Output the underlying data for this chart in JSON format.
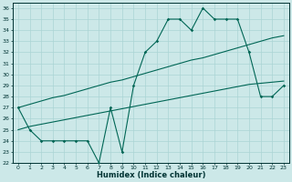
{
  "xlabel": "Humidex (Indice chaleur)",
  "hours": [
    0,
    1,
    2,
    3,
    4,
    5,
    6,
    7,
    8,
    9,
    10,
    11,
    12,
    13,
    14,
    15,
    16,
    17,
    18,
    19,
    20,
    21,
    22,
    23
  ],
  "main_line": [
    27,
    25,
    24,
    24,
    24,
    24,
    24,
    22,
    27,
    23,
    29,
    32,
    33,
    35,
    35,
    34,
    36,
    35,
    35,
    35,
    32,
    28,
    28,
    29
  ],
  "upper_line": [
    27,
    27.3,
    27.6,
    27.9,
    28.1,
    28.4,
    28.7,
    29.0,
    29.3,
    29.5,
    29.8,
    30.1,
    30.4,
    30.7,
    31.0,
    31.3,
    31.5,
    31.8,
    32.1,
    32.4,
    32.7,
    33.0,
    33.3,
    33.5
  ],
  "lower_line": [
    25.0,
    25.3,
    25.5,
    25.7,
    25.9,
    26.1,
    26.3,
    26.5,
    26.7,
    26.9,
    27.1,
    27.3,
    27.5,
    27.7,
    27.9,
    28.1,
    28.3,
    28.5,
    28.7,
    28.9,
    29.1,
    29.2,
    29.3,
    29.4
  ],
  "bg_color": "#cce8e8",
  "grid_color": "#aad4d4",
  "line_color": "#006655",
  "ylim_min": 22,
  "ylim_max": 36
}
